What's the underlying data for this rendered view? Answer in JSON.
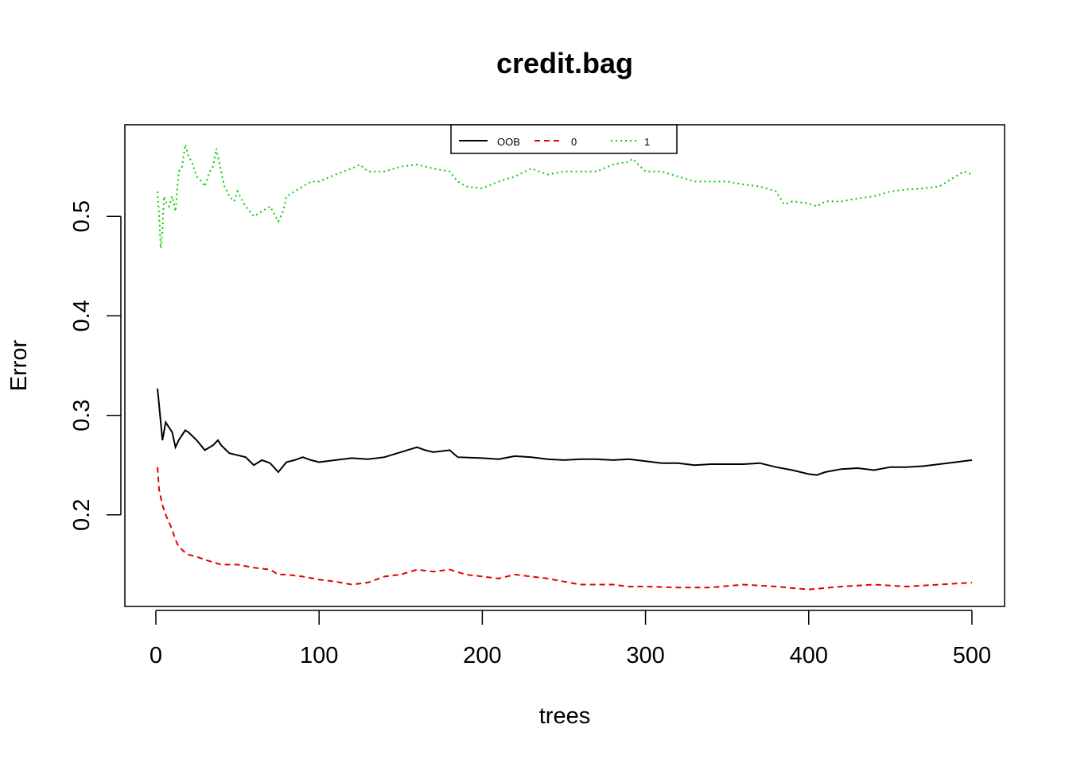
{
  "chart_data": {
    "type": "line",
    "title": "credit.bag",
    "xlabel": "trees",
    "ylabel": "Error",
    "xlim": [
      -19,
      520
    ],
    "ylim": [
      0.108,
      0.592
    ],
    "xticks": [
      0,
      100,
      200,
      300,
      400,
      500
    ],
    "yticks": [
      0.2,
      0.3,
      0.4,
      0.5
    ],
    "legend_position": "top",
    "series": [
      {
        "name": "OOB",
        "color": "#000000",
        "dash": "solid",
        "x": [
          1,
          2,
          4,
          6,
          8,
          10,
          12,
          14,
          16,
          18,
          20,
          25,
          30,
          35,
          38,
          40,
          45,
          50,
          55,
          60,
          65,
          70,
          75,
          80,
          85,
          90,
          95,
          100,
          110,
          120,
          130,
          140,
          150,
          160,
          165,
          170,
          180,
          185,
          200,
          210,
          220,
          230,
          240,
          250,
          260,
          270,
          280,
          290,
          300,
          310,
          320,
          330,
          340,
          350,
          360,
          370,
          380,
          390,
          400,
          405,
          410,
          420,
          430,
          440,
          450,
          460,
          470,
          480,
          490,
          500
        ],
        "y": [
          0.327,
          0.31,
          0.275,
          0.293,
          0.288,
          0.283,
          0.268,
          0.275,
          0.28,
          0.285,
          0.283,
          0.275,
          0.265,
          0.27,
          0.275,
          0.27,
          0.262,
          0.26,
          0.258,
          0.25,
          0.255,
          0.252,
          0.243,
          0.253,
          0.255,
          0.258,
          0.255,
          0.253,
          0.255,
          0.257,
          0.256,
          0.258,
          0.263,
          0.268,
          0.265,
          0.263,
          0.265,
          0.258,
          0.257,
          0.256,
          0.259,
          0.258,
          0.256,
          0.255,
          0.256,
          0.256,
          0.255,
          0.256,
          0.254,
          0.252,
          0.252,
          0.25,
          0.251,
          0.251,
          0.251,
          0.252,
          0.248,
          0.245,
          0.241,
          0.24,
          0.243,
          0.246,
          0.247,
          0.245,
          0.248,
          0.248,
          0.249,
          0.251,
          0.253,
          0.255
        ]
      },
      {
        "name": "0",
        "color": "#DF0000",
        "dash": "dashed",
        "x": [
          1,
          2,
          4,
          6,
          8,
          10,
          12,
          14,
          16,
          18,
          20,
          25,
          30,
          40,
          50,
          60,
          70,
          75,
          80,
          90,
          100,
          110,
          120,
          130,
          140,
          150,
          160,
          170,
          180,
          190,
          200,
          210,
          220,
          230,
          240,
          250,
          260,
          270,
          280,
          290,
          300,
          320,
          340,
          360,
          380,
          400,
          420,
          440,
          460,
          480,
          500
        ],
        "y": [
          0.248,
          0.225,
          0.21,
          0.2,
          0.193,
          0.185,
          0.175,
          0.168,
          0.165,
          0.162,
          0.16,
          0.158,
          0.155,
          0.15,
          0.15,
          0.147,
          0.145,
          0.14,
          0.14,
          0.138,
          0.135,
          0.133,
          0.13,
          0.132,
          0.138,
          0.14,
          0.145,
          0.143,
          0.145,
          0.14,
          0.138,
          0.136,
          0.14,
          0.138,
          0.136,
          0.133,
          0.13,
          0.13,
          0.13,
          0.128,
          0.128,
          0.127,
          0.127,
          0.13,
          0.128,
          0.125,
          0.128,
          0.13,
          0.128,
          0.13,
          0.132
        ]
      },
      {
        "name": "1",
        "color": "#00CD00",
        "dash": "dotted",
        "x": [
          1,
          2,
          3,
          4,
          5,
          6,
          8,
          10,
          12,
          14,
          16,
          18,
          20,
          22,
          25,
          28,
          30,
          33,
          35,
          37,
          38,
          40,
          42,
          45,
          48,
          50,
          55,
          60,
          65,
          70,
          75,
          78,
          80,
          85,
          90,
          95,
          100,
          110,
          120,
          125,
          130,
          140,
          150,
          160,
          165,
          170,
          180,
          185,
          190,
          200,
          210,
          220,
          230,
          240,
          250,
          260,
          270,
          280,
          290,
          292,
          300,
          310,
          320,
          330,
          340,
          350,
          360,
          370,
          380,
          385,
          390,
          400,
          405,
          410,
          420,
          430,
          440,
          450,
          460,
          470,
          480,
          490,
          495,
          500
        ],
        "y": [
          0.525,
          0.5,
          0.468,
          0.485,
          0.52,
          0.515,
          0.51,
          0.52,
          0.505,
          0.545,
          0.55,
          0.572,
          0.56,
          0.555,
          0.54,
          0.535,
          0.53,
          0.545,
          0.55,
          0.568,
          0.56,
          0.545,
          0.53,
          0.52,
          0.515,
          0.525,
          0.51,
          0.5,
          0.505,
          0.51,
          0.495,
          0.505,
          0.52,
          0.525,
          0.53,
          0.535,
          0.535,
          0.542,
          0.548,
          0.552,
          0.545,
          0.545,
          0.55,
          0.552,
          0.55,
          0.548,
          0.545,
          0.535,
          0.53,
          0.528,
          0.535,
          0.54,
          0.548,
          0.542,
          0.545,
          0.545,
          0.545,
          0.552,
          0.555,
          0.558,
          0.545,
          0.545,
          0.54,
          0.535,
          0.535,
          0.535,
          0.532,
          0.53,
          0.525,
          0.512,
          0.515,
          0.513,
          0.51,
          0.515,
          0.515,
          0.518,
          0.52,
          0.525,
          0.527,
          0.528,
          0.53,
          0.54,
          0.545,
          0.542
        ]
      }
    ]
  }
}
